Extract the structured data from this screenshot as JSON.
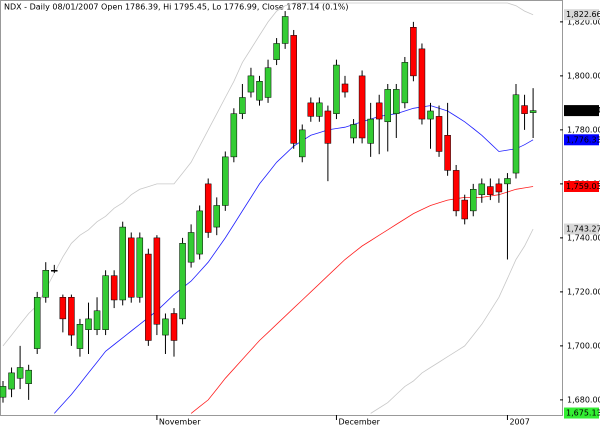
{
  "chart_data": {
    "type": "candlestick",
    "title": "NDX - Daily 08/01/2007 Open 1786.39, Hi 1795.45, Lo 1776.99, Close 1787.14 (0.1%)",
    "up_color": "#33cc33",
    "down_color": "#ff0000",
    "open": [
      1681,
      1684,
      1688,
      1686,
      1699,
      1718,
      1728,
      1718,
      1718,
      1699,
      1706,
      1706,
      1706,
      1726,
      1717,
      1740,
      1718,
      1734,
      1740,
      1704,
      1712,
      1710,
      1731,
      1734,
      1760,
      1744,
      1752,
      1770,
      1786,
      1794,
      1791,
      1792,
      1806,
      1812,
      1815,
      1770,
      1790,
      1785,
      1787,
      1786,
      1797,
      1777,
      1800,
      1775,
      1790,
      1783,
      1786,
      1790,
      1818,
      1810,
      1784,
      1785,
      1778,
      1765,
      1754,
      1750,
      1756,
      1759,
      1760,
      1760,
      1764,
      1789,
      1786.39
    ],
    "high": [
      1687,
      1692,
      1700,
      1693,
      1720,
      1731,
      1730,
      1719,
      1719,
      1710,
      1716,
      1718,
      1728,
      1728,
      1746,
      1742,
      1742,
      1736,
      1741,
      1712,
      1714,
      1740,
      1745,
      1752,
      1762,
      1755,
      1772,
      1788,
      1797,
      1803,
      1800,
      1806,
      1814,
      1824,
      1817,
      1782,
      1792,
      1792,
      1789,
      1806,
      1800,
      1784,
      1802,
      1790,
      1793,
      1797,
      1797,
      1807,
      1820,
      1812,
      1790,
      1789,
      1790,
      1767,
      1756,
      1760,
      1762,
      1762,
      1762,
      1764,
      1797,
      1793,
      1795.45
    ],
    "low": [
      1679,
      1681,
      1684,
      1680,
      1697,
      1716,
      1727,
      1705,
      1700,
      1696,
      1697,
      1704,
      1704,
      1714,
      1715,
      1716,
      1716,
      1700,
      1704,
      1697,
      1696,
      1708,
      1729,
      1732,
      1740,
      1741,
      1750,
      1768,
      1784,
      1792,
      1789,
      1790,
      1804,
      1810,
      1773,
      1768,
      1783,
      1783,
      1761,
      1784,
      1792,
      1775,
      1775,
      1770,
      1771,
      1772,
      1777,
      1788,
      1798,
      1782,
      1773,
      1770,
      1763,
      1748,
      1745,
      1748,
      1753,
      1754,
      1753,
      1732,
      1762,
      1780,
      1776.99
    ],
    "close": [
      1685,
      1690,
      1692,
      1691,
      1718,
      1728,
      1728,
      1710,
      1704,
      1708,
      1710,
      1713,
      1726,
      1717,
      1744,
      1718,
      1740,
      1702,
      1708,
      1710,
      1702,
      1738,
      1742,
      1750,
      1742,
      1752,
      1770,
      1786,
      1792,
      1800,
      1798,
      1803,
      1812,
      1822,
      1775,
      1780,
      1785,
      1790,
      1775,
      1804,
      1794,
      1782,
      1777,
      1784,
      1784,
      1795,
      1795,
      1805,
      1800,
      1784,
      1787,
      1772,
      1765,
      1750,
      1747,
      1758,
      1760,
      1756,
      1757,
      1762,
      1793,
      1786,
      1787.14
    ],
    "overlays": [
      {
        "color": "#c8c8c8",
        "values": [
          1700,
          1704,
          1708,
          1712,
          1715,
          1721,
          1727,
          1733,
          1738,
          1741,
          1743,
          1746,
          1748,
          1751,
          1753,
          1756,
          1758,
          1759,
          1760,
          1760,
          1760,
          1764,
          1768,
          1774,
          1780,
          1786,
          1792,
          1798,
          1805,
          1810,
          1815,
          1820,
          1824,
          1826,
          1827,
          1827,
          1827,
          1827,
          1827,
          1827,
          1827,
          1827,
          1827,
          1827,
          1827,
          1827,
          1827,
          1827,
          1827,
          1827,
          1827,
          1827,
          1827,
          1827,
          1827,
          1827,
          1827,
          1827,
          1827,
          1827,
          1826,
          1824,
          1822.66
        ]
      },
      {
        "color": "#2020ff",
        "values": [
          null,
          null,
          null,
          null,
          null,
          null,
          1675,
          1678.5,
          1682,
          1686,
          1690,
          1694,
          1698,
          1700.5,
          1703,
          1705.5,
          1708,
          1710.5,
          1713,
          1716,
          1719,
          1721.5,
          1724,
          1727.5,
          1731,
          1735.5,
          1740,
          1745,
          1750,
          1755,
          1760,
          1764,
          1768,
          1771,
          1774,
          1776,
          1778,
          1779,
          1780,
          1780.5,
          1781,
          1782,
          1783,
          1784,
          1785,
          1785.5,
          1786,
          1787,
          1788,
          1788.5,
          1789,
          1788,
          1787,
          1785,
          1783,
          1780.5,
          1778,
          1775,
          1772,
          1772.5,
          1773,
          1774.5,
          1776.33
        ]
      },
      {
        "color": "#ff2020",
        "values": [
          null,
          null,
          null,
          null,
          null,
          null,
          null,
          null,
          null,
          null,
          null,
          null,
          null,
          null,
          null,
          null,
          null,
          null,
          null,
          null,
          null,
          null,
          1675,
          1677.5,
          1680,
          1684,
          1688,
          1691.5,
          1695,
          1698.5,
          1702,
          1705,
          1708,
          1711,
          1714,
          1717,
          1720,
          1723,
          1726,
          1729,
          1732,
          1734.5,
          1737,
          1739,
          1741,
          1743,
          1745,
          1747,
          1749,
          1750.5,
          1752,
          1753,
          1754,
          1754.5,
          1755,
          1755,
          1755,
          1755.5,
          1756,
          1757,
          1758,
          1758.5,
          1759.03
        ]
      },
      {
        "color": "#c8c8c8",
        "values": [
          null,
          null,
          null,
          null,
          null,
          null,
          null,
          null,
          null,
          null,
          null,
          null,
          null,
          null,
          null,
          null,
          null,
          null,
          null,
          null,
          null,
          null,
          null,
          null,
          null,
          null,
          null,
          null,
          null,
          null,
          null,
          null,
          null,
          null,
          null,
          null,
          null,
          null,
          null,
          null,
          null,
          null,
          null,
          1675,
          1677,
          1679,
          1682,
          1685,
          1687,
          1690,
          1692,
          1694,
          1696,
          1698,
          1700,
          1704,
          1708,
          1713,
          1718,
          1725,
          1732,
          1737,
          1743.27
        ]
      }
    ],
    "price_labels": [
      {
        "value": 1822.66,
        "label": "1,822.66",
        "color": "#d8d8d8",
        "text_color": "#000000"
      },
      {
        "value": 1787.14,
        "label": "1,787.14",
        "color": "#000000",
        "text_color": "#ffffff"
      },
      {
        "value": 1776.33,
        "label": "1,776.33",
        "color": "#0000ff",
        "text_color": "#ffffff"
      },
      {
        "value": 1759.03,
        "label": "1,759.03",
        "color": "#ff0000",
        "text_color": "#ffffff"
      },
      {
        "value": 1743.27,
        "label": "1,743.27",
        "color": "#d8d8d8",
        "text_color": "#000000"
      },
      {
        "value": 1675.13,
        "label": "1,675.13",
        "color": "#33ee33",
        "text_color": "#ffffff"
      }
    ],
    "ylim": [
      1674.4,
      1828.1
    ],
    "yticks": [
      {
        "value": 1680,
        "label": "1,680.00"
      },
      {
        "value": 1700,
        "label": "1,700.00"
      },
      {
        "value": 1720,
        "label": "1,720.00"
      },
      {
        "value": 1740,
        "label": "1,740.00"
      },
      {
        "value": 1760,
        "label": "1,760.00"
      },
      {
        "value": 1780,
        "label": "1,780.00"
      },
      {
        "value": 1800,
        "label": "1,800.00"
      },
      {
        "value": 1820,
        "label": "1,820.00"
      }
    ],
    "xticks": [
      {
        "value": 18,
        "label": "November"
      },
      {
        "value": 39,
        "label": "December"
      },
      {
        "value": 59,
        "label": "2007"
      }
    ]
  }
}
